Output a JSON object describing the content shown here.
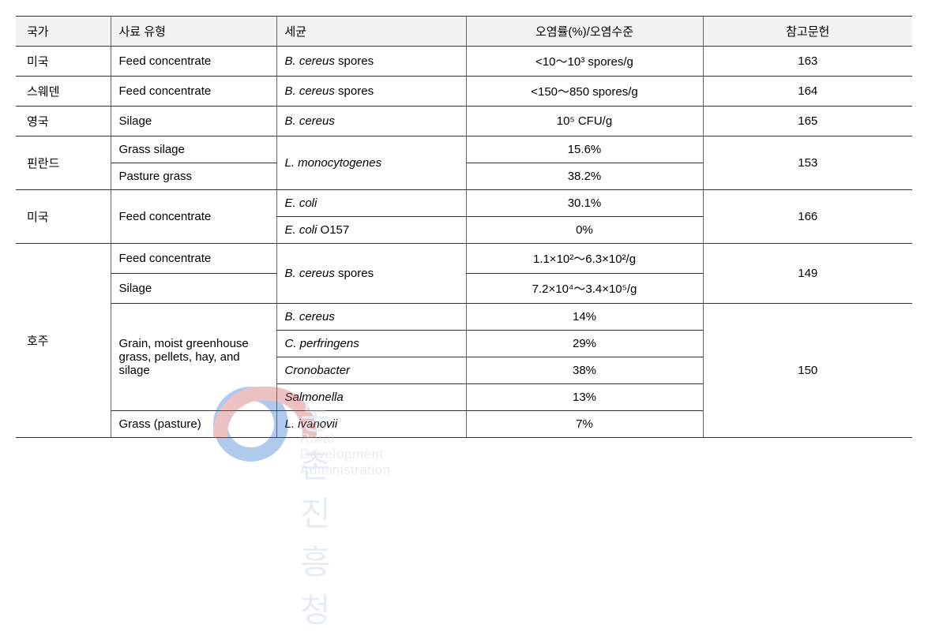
{
  "watermark": {
    "ko": "농촌진흥청",
    "en": "Rural Development Administration",
    "circle_color_top": "#c94f4f",
    "circle_color_bottom": "#1f6bd0"
  },
  "table": {
    "headers": {
      "country": "국가",
      "feed_type": "사료 유형",
      "bacteria": "세균",
      "level": "오염률(%)/오염수준",
      "reference": "참고문헌"
    },
    "rows": [
      {
        "country": "미국",
        "feed": "Feed concentrate",
        "bacteria": "B. cereus",
        "bacteria_suffix": " spores",
        "level": "<10～10³ spores/g",
        "reference": "163"
      },
      {
        "country": "스웨덴",
        "feed": "Feed concentrate",
        "bacteria": "B. cereus",
        "bacteria_suffix": " spores",
        "level": "<150～850 spores/g",
        "reference": "164"
      },
      {
        "country": "영국",
        "feed": "Silage",
        "bacteria": "B. cereus",
        "bacteria_suffix": "",
        "level": "10⁵ CFU/g",
        "reference": "165"
      },
      {
        "country": "핀란드",
        "feed1": "Grass silage",
        "feed2": "Pasture grass",
        "bacteria": "L. monocytogenes",
        "level1": "15.6%",
        "level2": "38.2%",
        "reference": "153"
      },
      {
        "country": "미국",
        "feed": "Feed concentrate",
        "bacteria1": "E. coli",
        "bacteria2": "E. coli",
        "bacteria2_suffix": " O157",
        "level1": "30.1%",
        "level2": "0%",
        "reference": "166"
      },
      {
        "country": "호주",
        "block1": {
          "feed_a": "Feed concentrate",
          "feed_b": "Silage",
          "bacteria": "B. cereus",
          "bacteria_suffix": " spores",
          "level_a": "1.1×10²～6.3×10²/g",
          "level_b": "7.2×10⁴～3.4×10⁵/g",
          "reference": "149"
        },
        "block2": {
          "feed_multi": "Grain, moist greenhouse grass, pellets, hay, and silage",
          "b1": "B. cereus",
          "b2": "C. perfringens",
          "b3": "Cronobacter",
          "b4": "Salmonella",
          "l1": "14%",
          "l2": "29%",
          "l3": "38%",
          "l4": "13%",
          "feed_last": "Grass (pasture)",
          "b5": "L. ivanovii",
          "l5": "7%",
          "reference": "150"
        }
      }
    ]
  }
}
